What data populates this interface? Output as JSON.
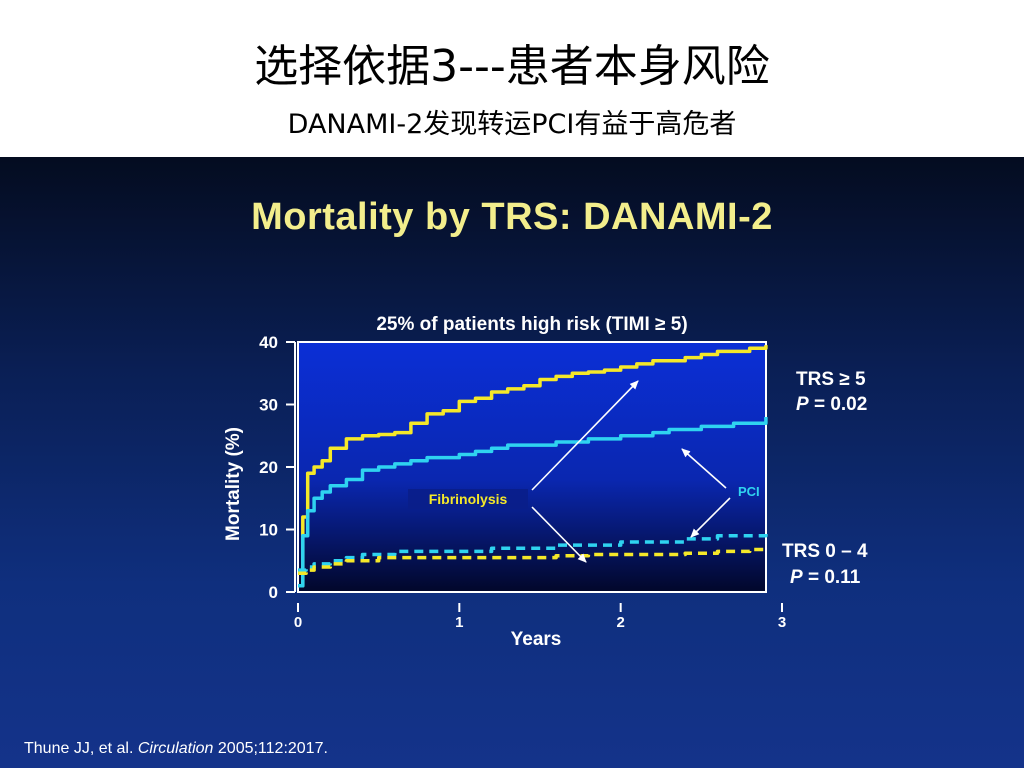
{
  "header": {
    "title": "选择依据3---患者本身风险",
    "subtitle": "DANAMI-2发现转运PCI有益于高危者"
  },
  "slide": {
    "title": "Mortality by TRS: DANAMI-2",
    "citation_authors": "Thune JJ, et al.",
    "citation_journal": "Circulation",
    "citation_rest": "2005;112:2017."
  },
  "colors": {
    "fibrinolysis": "#f5e829",
    "pci": "#2fd3f0",
    "title_yellow": "#f3ee8c"
  },
  "chart_data": {
    "type": "line",
    "title": "25% of patients high risk (TIMI ≥ 5)",
    "xlabel": "Years",
    "ylabel": "Mortality (%)",
    "xlim": [
      0,
      3
    ],
    "ylim": [
      0,
      40
    ],
    "xticks": [
      "0",
      "1",
      "2",
      "3"
    ],
    "yticks": [
      "0",
      "10",
      "20",
      "30",
      "40"
    ],
    "grid": false,
    "series": [
      {
        "group": "TRS ≥ 5",
        "treatment": "Fibrinolysis",
        "style": "solid",
        "color": "#f5e829",
        "x": [
          0,
          0.03,
          0.06,
          0.1,
          0.15,
          0.2,
          0.3,
          0.4,
          0.5,
          0.6,
          0.7,
          0.8,
          0.9,
          1.0,
          1.1,
          1.2,
          1.3,
          1.4,
          1.5,
          1.6,
          1.7,
          1.8,
          1.9,
          2.0,
          2.1,
          2.2,
          2.3,
          2.4,
          2.5,
          2.6,
          2.7,
          2.8,
          2.9
        ],
        "y": [
          1,
          12,
          19,
          20,
          21,
          23,
          24.5,
          25,
          25.2,
          25.5,
          27,
          28.5,
          29,
          30.5,
          31,
          32,
          32.5,
          33,
          34,
          34.5,
          35,
          35.2,
          35.5,
          36,
          36.5,
          37,
          37,
          37.5,
          38,
          38.5,
          38.5,
          39,
          39.5
        ]
      },
      {
        "group": "TRS ≥ 5",
        "treatment": "PCI",
        "style": "solid",
        "color": "#2fd3f0",
        "x": [
          0,
          0.03,
          0.06,
          0.1,
          0.15,
          0.2,
          0.3,
          0.4,
          0.5,
          0.6,
          0.7,
          0.8,
          0.9,
          1.0,
          1.1,
          1.2,
          1.3,
          1.4,
          1.5,
          1.6,
          1.7,
          1.8,
          1.9,
          2.0,
          2.1,
          2.2,
          2.3,
          2.4,
          2.5,
          2.6,
          2.7,
          2.8,
          2.9
        ],
        "y": [
          1,
          9,
          13,
          15,
          16,
          17,
          18,
          19.5,
          20,
          20.5,
          21,
          21.5,
          21.5,
          22,
          22.5,
          23,
          23.5,
          23.5,
          23.5,
          24,
          24,
          24.5,
          24.5,
          25,
          25,
          25.5,
          26,
          26,
          26.5,
          26.5,
          27,
          27,
          28
        ]
      },
      {
        "group": "TRS 0 – 4",
        "treatment": "PCI",
        "style": "dashed",
        "color": "#2fd3f0",
        "x": [
          0,
          0.05,
          0.1,
          0.2,
          0.3,
          0.4,
          0.5,
          0.6,
          0.8,
          1.0,
          1.2,
          1.4,
          1.6,
          1.8,
          2.0,
          2.2,
          2.4,
          2.6,
          2.8,
          2.9
        ],
        "y": [
          3.5,
          4,
          4.5,
          5,
          5.5,
          6,
          6,
          6.5,
          6.5,
          6.5,
          7,
          7,
          7.5,
          7.5,
          8,
          8,
          8.5,
          9,
          9,
          9.3
        ]
      },
      {
        "group": "TRS 0 – 4",
        "treatment": "Fibrinolysis",
        "style": "dashed",
        "color": "#f5e829",
        "x": [
          0,
          0.05,
          0.1,
          0.2,
          0.3,
          0.4,
          0.5,
          0.6,
          0.8,
          1.0,
          1.2,
          1.4,
          1.6,
          1.8,
          2.0,
          2.2,
          2.4,
          2.6,
          2.8,
          2.9
        ],
        "y": [
          3,
          3.5,
          4,
          4.5,
          5,
          5,
          5.5,
          5.5,
          5.5,
          5.5,
          5.5,
          5.5,
          5.8,
          6,
          6,
          6,
          6.2,
          6.5,
          6.8,
          7
        ]
      }
    ],
    "annotations": {
      "fibrinolysis_label": "Fibrinolysis",
      "pci_label": "PCI",
      "high_group_label": "TRS ≥ 5",
      "high_p_italic": "P",
      "high_p_value": " = 0.02",
      "low_group_label": "TRS 0 – 4",
      "low_p_italic": "P",
      "low_p_value": " = 0.11"
    }
  }
}
